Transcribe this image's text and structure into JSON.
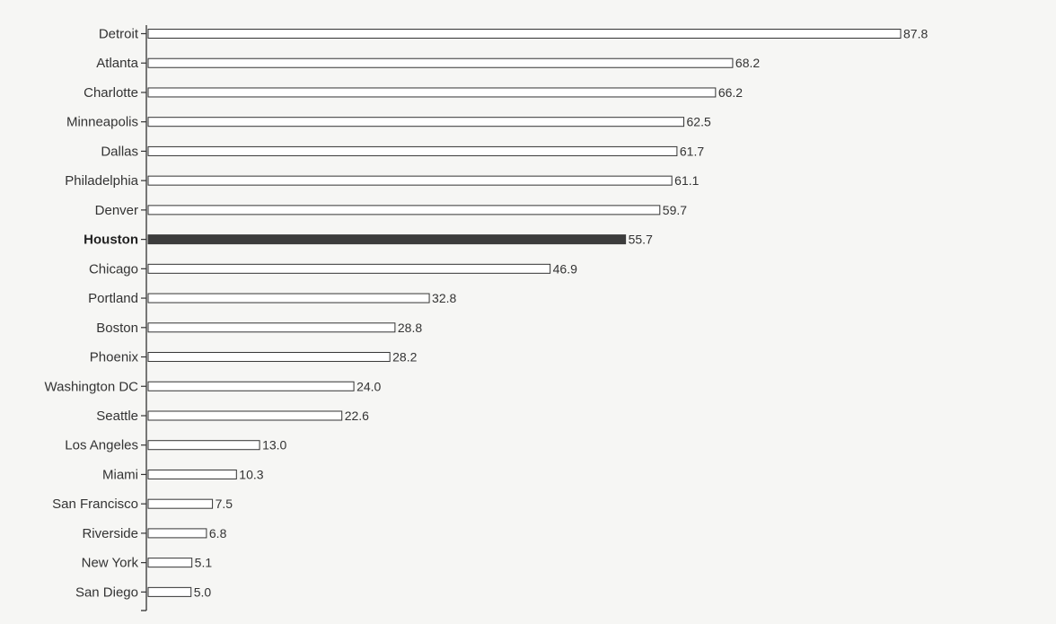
{
  "chart_data": {
    "type": "bar",
    "orientation": "horizontal",
    "categories": [
      "Detroit",
      "Atlanta",
      "Charlotte",
      "Minneapolis",
      "Dallas",
      "Philadelphia",
      "Denver",
      "Houston",
      "Chicago",
      "Portland",
      "Boston",
      "Phoenix",
      "Washington DC",
      "Seattle",
      "Los Angeles",
      "Miami",
      "San Francisco",
      "Riverside",
      "New York",
      "San Diego"
    ],
    "values": [
      87.8,
      68.2,
      66.2,
      62.5,
      61.7,
      61.1,
      59.7,
      55.7,
      46.9,
      32.8,
      28.8,
      28.2,
      24.0,
      22.6,
      13.0,
      10.3,
      7.5,
      6.8,
      5.1,
      5.0
    ],
    "value_labels": [
      "87.8",
      "68.2",
      "66.2",
      "62.5",
      "61.7",
      "61.1",
      "59.7",
      "55.7",
      "46.9",
      "32.8",
      "28.8",
      "28.2",
      "24.0",
      "22.6",
      "13.0",
      "10.3",
      "7.5",
      "6.8",
      "5.1",
      "5.0"
    ],
    "highlight": "Houston",
    "title": "",
    "xlabel": "",
    "ylabel": "",
    "grid": false,
    "colors": {
      "bar_fill": "#ffffff",
      "bar_stroke": "#333333",
      "highlight_fill": "#3c3c3c",
      "axis": "#333333"
    }
  }
}
